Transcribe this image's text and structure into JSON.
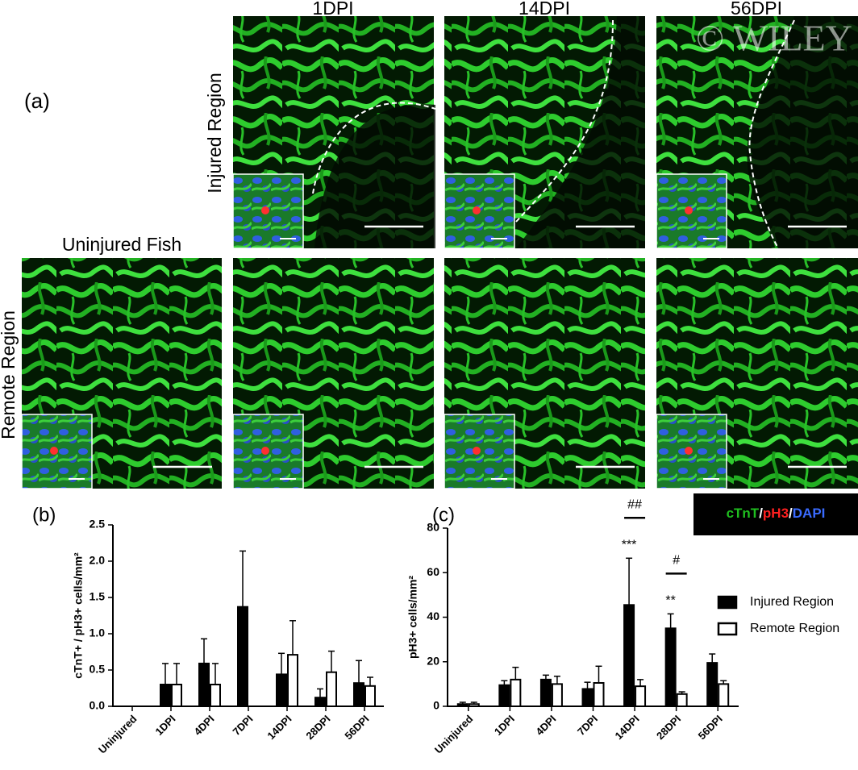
{
  "panel_a": {
    "label": "(a)",
    "columns": [
      "1DPI",
      "14DPI",
      "56DPI"
    ],
    "rows": [
      "Injured Region",
      "Remote Region"
    ],
    "uninjured": "Uninjured Fish",
    "stain": [
      {
        "text": "cTnT",
        "color": "#1fbf1f"
      },
      {
        "text": "/",
        "color": "#ffffff"
      },
      {
        "text": "pH3",
        "color": "#ff2020"
      },
      {
        "text": "/",
        "color": "#ffffff"
      },
      {
        "text": "DAPI",
        "color": "#3a6bff"
      }
    ],
    "watermark": "© WILEY"
  },
  "chart_data": [
    {
      "type": "bar",
      "panel_label": "(b)",
      "y_label": "cTnT+ / pH3+ cells/mm²",
      "categories": [
        "Uninjured",
        "1DPI",
        "4DPI",
        "7DPI",
        "14DPI",
        "28DPI",
        "56DPI"
      ],
      "series": [
        {
          "color": "#000000",
          "values": [
            0,
            0.3,
            0.59,
            1.37,
            0.44,
            0.12,
            0.32
          ],
          "errors": [
            0,
            0.29,
            0.34,
            0.77,
            0.29,
            0.12,
            0.31
          ]
        },
        {
          "color": "#ffffff",
          "values": [
            0,
            0.3,
            0.3,
            0,
            0.71,
            0.47,
            0.28
          ],
          "errors": [
            0,
            0.29,
            0.29,
            0,
            0.47,
            0.29,
            0.12
          ]
        }
      ],
      "ylim": [
        0,
        2.5
      ],
      "yticks": [
        {
          "value": 0,
          "label": "0.0"
        },
        0.5,
        {
          "value": 1,
          "label": "1.0"
        },
        1.5,
        {
          "value": 2,
          "label": "2.0"
        },
        2.5
      ]
    },
    {
      "type": "bar",
      "panel_label": "(c)",
      "y_label": "pH3+ cells/mm²",
      "categories": [
        "Uninjured",
        "1DPI",
        "4DPI",
        "7DPI",
        "14DPI",
        "28DPI",
        "56DPI"
      ],
      "series": [
        {
          "name": "Injured Region",
          "color": "#000000",
          "values": [
            1,
            9.5,
            12,
            7.8,
            45.5,
            35,
            19.5
          ],
          "errors": [
            0.8,
            2,
            2,
            3,
            21,
            6.5,
            4
          ]
        },
        {
          "name": "Remote Region",
          "color": "#ffffff",
          "values": [
            1,
            12,
            10,
            10.5,
            9,
            5.5,
            10
          ],
          "errors": [
            0.8,
            5.5,
            3.5,
            7.5,
            3,
            1,
            1.5
          ]
        }
      ],
      "ylim": [
        0,
        80
      ],
      "yticks": [
        0,
        20,
        40,
        60,
        80
      ],
      "legend": "right",
      "annotations": [
        {
          "text": "***",
          "category": "14DPI",
          "bracket": false
        },
        {
          "text": "##",
          "category": "14DPI",
          "bracket": true
        },
        {
          "text": "**",
          "category": "28DPI",
          "bracket": false
        },
        {
          "text": "#",
          "category": "28DPI",
          "bracket": true
        }
      ]
    }
  ]
}
